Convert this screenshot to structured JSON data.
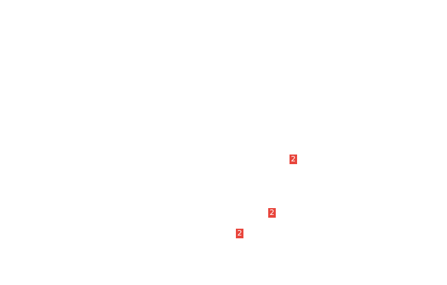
{
  "badge_color": "#e8453c",
  "badges": [
    {
      "label": "2"
    },
    {
      "label": "2"
    },
    {
      "label": "2"
    }
  ]
}
